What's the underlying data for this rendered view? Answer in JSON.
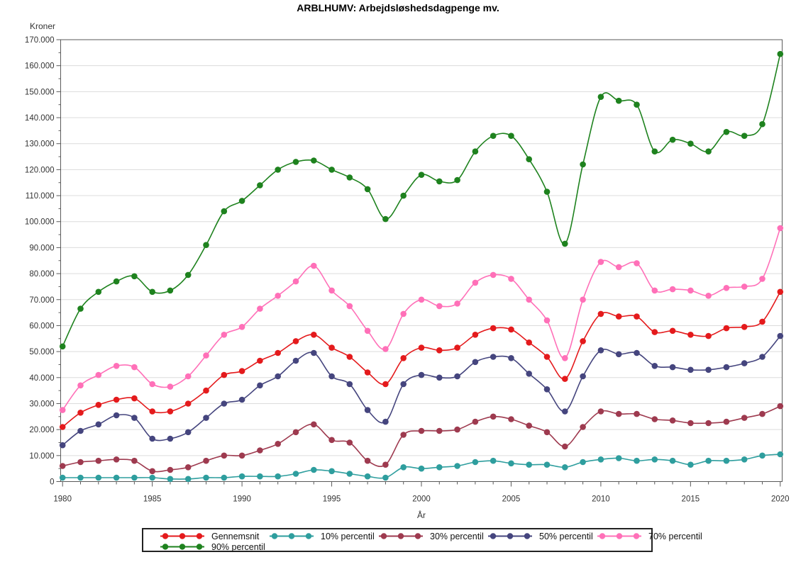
{
  "title": "ARBLHUMV: Arbejdsløshedsdagpenge mv.",
  "chart_data": {
    "type": "line",
    "title": "ARBLHUMV: Arbejdsløshedsdagpenge mv.",
    "xlabel": "År",
    "ylabel": "Kroner",
    "xlim": [
      1980,
      2020
    ],
    "ylim": [
      0,
      170000
    ],
    "ytick_interval": 10000,
    "ytick_minor_interval": 5000,
    "xtick_label_interval": 5,
    "xtick_minor_interval": 1,
    "grid": "horizontal",
    "legend_position": "bottom",
    "x": [
      1980,
      1981,
      1982,
      1983,
      1984,
      1985,
      1986,
      1987,
      1988,
      1989,
      1990,
      1991,
      1992,
      1993,
      1994,
      1995,
      1996,
      1997,
      1998,
      1999,
      2000,
      2001,
      2002,
      2003,
      2004,
      2005,
      2006,
      2007,
      2008,
      2009,
      2010,
      2011,
      2012,
      2013,
      2014,
      2015,
      2016,
      2017,
      2018,
      2019,
      2020
    ],
    "series": [
      {
        "name": "Gennemsnit",
        "color": "#E41A1C",
        "values": [
          21000,
          26500,
          29500,
          31500,
          32000,
          27000,
          27000,
          30000,
          35000,
          41000,
          42500,
          46500,
          49500,
          54000,
          56500,
          51500,
          48000,
          42000,
          37500,
          47500,
          51500,
          50500,
          51500,
          56500,
          59000,
          58500,
          53500,
          48000,
          39500,
          54000,
          64500,
          63500,
          63500,
          57500,
          58000,
          56500,
          56000,
          59000,
          59500,
          61500,
          73000
        ]
      },
      {
        "name": "10% percentil",
        "color": "#2E9E9E",
        "values": [
          1500,
          1500,
          1500,
          1500,
          1500,
          1500,
          1000,
          1000,
          1500,
          1500,
          2000,
          2000,
          2000,
          3000,
          4500,
          4000,
          3000,
          2000,
          1500,
          5500,
          5000,
          5500,
          6000,
          7500,
          8000,
          7000,
          6500,
          6500,
          5500,
          7500,
          8500,
          9000,
          8000,
          8500,
          8000,
          6500,
          8000,
          8000,
          8500,
          10000,
          10500
        ]
      },
      {
        "name": "30% percentil",
        "color": "#9E3A4F",
        "values": [
          6000,
          7500,
          8000,
          8500,
          8000,
          4000,
          4500,
          5500,
          8000,
          10000,
          10000,
          12000,
          14500,
          19000,
          22000,
          16000,
          15000,
          8000,
          6500,
          18000,
          19500,
          19500,
          20000,
          23000,
          25000,
          24000,
          21500,
          19000,
          13500,
          21000,
          27000,
          26000,
          26000,
          24000,
          23500,
          22500,
          22500,
          23000,
          24500,
          26000,
          29000
        ]
      },
      {
        "name": "50% percentil",
        "color": "#45457E",
        "values": [
          14000,
          19500,
          22000,
          25500,
          24500,
          16500,
          16500,
          19000,
          24500,
          30000,
          31500,
          37000,
          40500,
          46500,
          49500,
          40500,
          37500,
          27500,
          23000,
          37500,
          41000,
          40000,
          40500,
          46000,
          48000,
          47500,
          41500,
          35500,
          27000,
          40500,
          50500,
          49000,
          49500,
          44500,
          44000,
          43000,
          43000,
          44000,
          45500,
          48000,
          56000
        ]
      },
      {
        "name": "70% percentil",
        "color": "#FF70B8",
        "values": [
          27500,
          37000,
          41000,
          44500,
          44000,
          37500,
          36500,
          40500,
          48500,
          56500,
          59500,
          66500,
          71500,
          77000,
          83000,
          73500,
          67500,
          58000,
          51000,
          64500,
          70000,
          67500,
          68500,
          76500,
          79500,
          78000,
          70000,
          62000,
          47500,
          70000,
          84500,
          82500,
          84000,
          73500,
          74000,
          73500,
          71500,
          74500,
          75000,
          78000,
          97500
        ]
      },
      {
        "name": "90% percentil",
        "color": "#1E821E",
        "values": [
          52000,
          66500,
          73000,
          77000,
          79000,
          73000,
          73500,
          79500,
          91000,
          104000,
          108000,
          114000,
          120000,
          123000,
          123500,
          120000,
          117000,
          112500,
          101000,
          110000,
          118000,
          115500,
          116000,
          127000,
          133000,
          133000,
          124000,
          111500,
          91500,
          122000,
          148000,
          146500,
          145000,
          127000,
          131500,
          130000,
          127000,
          134500,
          133000,
          137500,
          164500
        ]
      }
    ]
  }
}
